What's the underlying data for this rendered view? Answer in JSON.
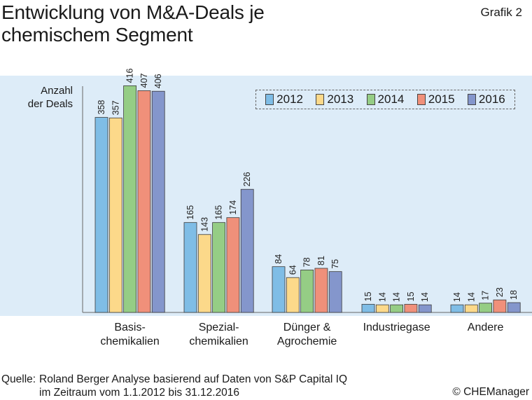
{
  "header": {
    "title_line1": "Entwicklung von M&A-Deals je",
    "title_line2": "chemischem Segment",
    "figure_label": "Grafik 2"
  },
  "footer": {
    "source_label": "Quelle:",
    "source_line1": "Roland Berger Analyse basierend auf Daten von S&P Capital IQ",
    "source_line2": "im Zeitraum vom 1.1.2012 bis 31.12.2016",
    "copyright": "© CHEManager"
  },
  "chart_data": {
    "type": "bar",
    "title": "Entwicklung von M&A-Deals je chemischem Segment",
    "ylabel_line1": "Anzahl",
    "ylabel_line2": "der Deals",
    "ylim": [
      0,
      450
    ],
    "categories": [
      [
        "Basis-",
        "chemikalien"
      ],
      [
        "Spezial-",
        "chemikalien"
      ],
      [
        "Dünger &",
        "Agrochemie"
      ],
      [
        "Industriegase"
      ],
      [
        "Andere"
      ]
    ],
    "series": [
      {
        "name": "2012",
        "color": "#7fbde6",
        "values": [
          358,
          165,
          84,
          15,
          14
        ]
      },
      {
        "name": "2013",
        "color": "#fcd98a",
        "values": [
          357,
          143,
          64,
          14,
          14
        ]
      },
      {
        "name": "2014",
        "color": "#95cd85",
        "values": [
          416,
          165,
          78,
          14,
          17
        ]
      },
      {
        "name": "2015",
        "color": "#f0907a",
        "values": [
          407,
          174,
          81,
          15,
          23
        ]
      },
      {
        "name": "2016",
        "color": "#8496cc",
        "values": [
          406,
          226,
          75,
          14,
          18
        ]
      }
    ],
    "legend_position": "top-right"
  }
}
